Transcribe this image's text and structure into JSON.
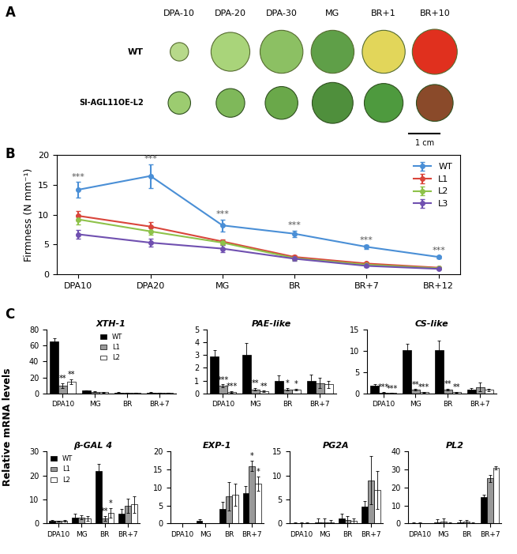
{
  "panel_labels": [
    "A",
    "B",
    "C"
  ],
  "photo_panel": {
    "column_labels": [
      "DPA-10",
      "DPA-20",
      "DPA-30",
      "MG",
      "BR+1",
      "BR+10"
    ],
    "row_labels": [
      "WT",
      "Sl-AGL11OE-L2"
    ],
    "scale_bar": "1 cm"
  },
  "panel_c_ylabel": "Relative mRNA levels",
  "chart_data": [
    {
      "type": "line",
      "ylabel": "Firmness (N mm⁻¹)",
      "categories": [
        "DPA10",
        "DPA20",
        "MG",
        "BR",
        "BR+7",
        "BR+12"
      ],
      "ylim": [
        0,
        20
      ],
      "yticks": [
        0,
        5,
        10,
        15,
        20
      ],
      "legend": "upper right",
      "marker": "o",
      "series": [
        {
          "name": "WT",
          "color": "#4a8fd6",
          "values": [
            14.2,
            16.5,
            8.2,
            6.8,
            4.6,
            2.9
          ],
          "errors": [
            1.3,
            2.0,
            1.0,
            0.5,
            0.3,
            0.2
          ],
          "significance": [
            "***",
            "***",
            "***",
            "***",
            "***",
            "***"
          ]
        },
        {
          "name": "L1",
          "color": "#d9453b",
          "values": [
            9.8,
            8.0,
            5.5,
            2.9,
            1.8,
            1.1
          ],
          "errors": [
            0.8,
            0.8,
            0.4,
            0.3,
            0.2,
            0.1
          ]
        },
        {
          "name": "L2",
          "color": "#8ec24a",
          "values": [
            9.2,
            7.2,
            5.3,
            2.7,
            1.6,
            1.0
          ],
          "errors": [
            0.8,
            0.6,
            0.4,
            0.3,
            0.2,
            0.1
          ]
        },
        {
          "name": "L3",
          "color": "#7050b0",
          "values": [
            6.7,
            5.3,
            4.3,
            2.6,
            1.4,
            0.9
          ],
          "errors": [
            0.7,
            0.7,
            0.6,
            0.3,
            0.2,
            0.1
          ]
        }
      ]
    },
    {
      "type": "bar",
      "title": "XTH-1",
      "categories": [
        "DPA10",
        "MG",
        "BR",
        "BR+7"
      ],
      "ylim": [
        0,
        80
      ],
      "yticks": [
        0,
        20,
        40,
        60,
        80
      ],
      "legend": "upper center",
      "series": [
        {
          "name": "WT",
          "color": "#000000",
          "values": [
            65,
            3.5,
            1,
            1
          ],
          "errors": [
            4,
            0.5,
            0.3,
            0.3
          ]
        },
        {
          "name": "L1",
          "color": "#999999",
          "values": [
            10,
            2,
            0.5,
            0.5
          ],
          "errors": [
            3,
            0.5,
            0.2,
            0.2
          ],
          "significance": [
            "**",
            null,
            null,
            null
          ]
        },
        {
          "name": "L2",
          "color": "#ffffff",
          "values": [
            15,
            1.5,
            0.5,
            0.5
          ],
          "errors": [
            3,
            0.4,
            0.2,
            0.2
          ],
          "significance": [
            "**",
            null,
            null,
            null
          ]
        }
      ]
    },
    {
      "type": "bar",
      "title": "PAE-like",
      "categories": [
        "DPA10",
        "MG",
        "BR",
        "BR+7"
      ],
      "ylim": [
        0,
        5
      ],
      "yticks": [
        0,
        1,
        2,
        3,
        4,
        5
      ],
      "series": [
        {
          "name": "WT",
          "color": "#000000",
          "values": [
            2.9,
            3.05,
            1.0,
            0.95
          ],
          "errors": [
            0.5,
            0.9,
            0.4,
            0.5
          ]
        },
        {
          "name": "L1",
          "color": "#999999",
          "values": [
            0.6,
            0.3,
            0.3,
            0.8
          ],
          "errors": [
            0.1,
            0.1,
            0.1,
            0.4
          ],
          "significance": [
            "***",
            "**",
            "*",
            null
          ]
        },
        {
          "name": "L2",
          "color": "#ffffff",
          "values": [
            0.1,
            0.15,
            0.3,
            0.7
          ],
          "errors": [
            0.05,
            0.05,
            0.05,
            0.3
          ],
          "significance": [
            "***",
            "**",
            "*",
            null
          ]
        }
      ]
    },
    {
      "type": "bar",
      "title": "CS-like",
      "categories": [
        "DPA10",
        "MG",
        "BR",
        "BR+7"
      ],
      "ylim": [
        0,
        15
      ],
      "yticks": [
        0,
        5,
        10,
        15
      ],
      "series": [
        {
          "name": "WT",
          "color": "#000000",
          "values": [
            1.8,
            10.1,
            10.2,
            0.9
          ],
          "errors": [
            0.3,
            1.5,
            2.2,
            0.3
          ]
        },
        {
          "name": "L1",
          "color": "#999999",
          "values": [
            0.2,
            0.8,
            0.9,
            1.5
          ],
          "errors": [
            0.1,
            0.2,
            0.2,
            1.0
          ],
          "significance": [
            "***",
            "**",
            "**",
            null
          ]
        },
        {
          "name": "L2",
          "color": "#ffffff",
          "values": [
            0.05,
            0.3,
            0.3,
            0.8
          ],
          "errors": [
            0.02,
            0.1,
            0.1,
            0.3
          ],
          "significance": [
            "***",
            "***",
            "**",
            null
          ]
        }
      ]
    },
    {
      "type": "bar",
      "title": "β-GAL 4",
      "categories": [
        "DPA10",
        "MG",
        "BR",
        "BR+7"
      ],
      "ylim": [
        0,
        30
      ],
      "yticks": [
        0,
        10,
        20,
        30
      ],
      "legend": "upper left",
      "series": [
        {
          "name": "WT",
          "color": "#000000",
          "values": [
            1,
            2.5,
            22,
            4
          ],
          "errors": [
            0.3,
            1.5,
            3,
            2
          ]
        },
        {
          "name": "L1",
          "color": "#999999",
          "values": [
            1,
            2.5,
            2,
            7.5
          ],
          "errors": [
            0.2,
            0.8,
            1,
            3
          ],
          "significance": [
            null,
            null,
            "**",
            null
          ]
        },
        {
          "name": "L2",
          "color": "#ffffff",
          "values": [
            1,
            2,
            4.5,
            8
          ],
          "errors": [
            0.3,
            1,
            2,
            3.5
          ],
          "significance": [
            null,
            null,
            "*",
            null
          ]
        }
      ]
    },
    {
      "type": "bar",
      "title": "EXP-1",
      "categories": [
        "DPA10",
        "MG",
        "BR",
        "BR+7"
      ],
      "ylim": [
        0,
        20
      ],
      "yticks": [
        0,
        5,
        10,
        15,
        20
      ],
      "series": [
        {
          "name": "WT",
          "color": "#000000",
          "values": [
            0.05,
            0.8,
            4,
            8.5
          ],
          "errors": [
            0,
            0.3,
            2,
            2
          ]
        },
        {
          "name": "L1",
          "color": "#999999",
          "values": [
            0.05,
            0.1,
            7.5,
            16
          ],
          "errors": [
            0,
            0.05,
            4,
            1.5
          ],
          "significance": [
            null,
            null,
            null,
            "*"
          ]
        },
        {
          "name": "L2",
          "color": "#ffffff",
          "values": [
            0.05,
            0.1,
            8,
            11
          ],
          "errors": [
            0,
            0.05,
            3,
            2
          ],
          "significance": [
            null,
            null,
            null,
            "*"
          ]
        }
      ]
    },
    {
      "type": "bar",
      "title": "PG2A",
      "categories": [
        "DPA10",
        "MG",
        "BR",
        "BR+7"
      ],
      "ylim": [
        0,
        15
      ],
      "yticks": [
        0,
        5,
        10,
        15
      ],
      "series": [
        {
          "name": "WT",
          "color": "#000000",
          "values": [
            0.1,
            0.2,
            1,
            3.5
          ],
          "errors": [
            0.1,
            0.8,
            1,
            1.2
          ]
        },
        {
          "name": "L1",
          "color": "#999999",
          "values": [
            0.1,
            0.3,
            0.8,
            9
          ],
          "errors": [
            0.1,
            0.8,
            0.8,
            5
          ]
        },
        {
          "name": "L2",
          "color": "#ffffff",
          "values": [
            0.1,
            0.3,
            0.5,
            7
          ],
          "errors": [
            0.1,
            0.5,
            0.5,
            4
          ]
        }
      ]
    },
    {
      "type": "bar",
      "title": "PL2",
      "categories": [
        "DPA10",
        "MG",
        "BR",
        "BR+7"
      ],
      "ylim": [
        0,
        40
      ],
      "yticks": [
        0,
        10,
        20,
        30,
        40
      ],
      "series": [
        {
          "name": "WT",
          "color": "#000000",
          "values": [
            0.1,
            0.5,
            0.8,
            14.5
          ],
          "errors": [
            0.5,
            2,
            1,
            1.5
          ]
        },
        {
          "name": "L1",
          "color": "#999999",
          "values": [
            0.1,
            1,
            1,
            25
          ],
          "errors": [
            0.5,
            2,
            1,
            2
          ]
        },
        {
          "name": "L2",
          "color": "#ffffff",
          "values": [
            0.1,
            0.2,
            0.3,
            31
          ],
          "errors": [
            0.2,
            0.3,
            0.5,
            1
          ]
        }
      ]
    }
  ]
}
